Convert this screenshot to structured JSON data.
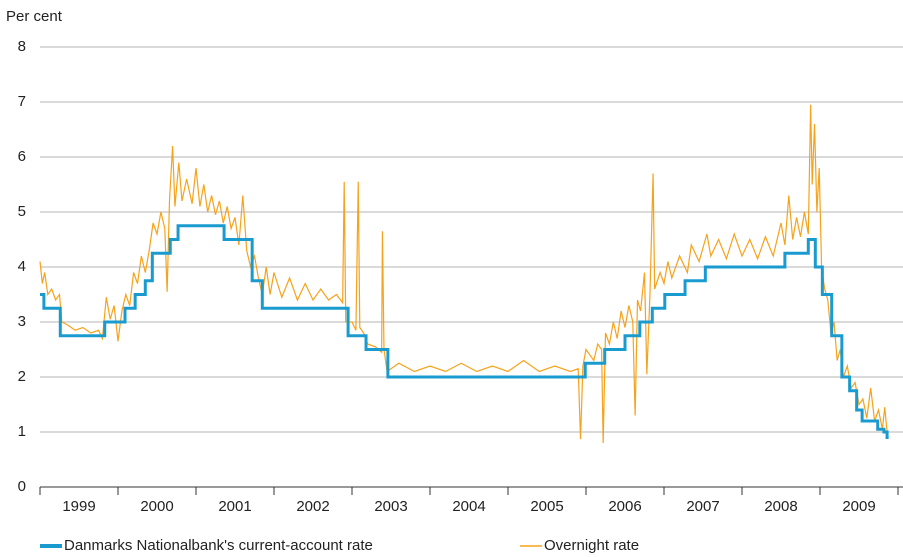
{
  "chart_data": {
    "type": "line",
    "y_label": "Per cent",
    "xlim": [
      1999,
      2010
    ],
    "xticks": [
      {
        "value": 1999.5,
        "label": "1999"
      },
      {
        "value": 2000.5,
        "label": "2000"
      },
      {
        "value": 2001.5,
        "label": "2001"
      },
      {
        "value": 2002.5,
        "label": "2002"
      },
      {
        "value": 2003.5,
        "label": "2003"
      },
      {
        "value": 2004.5,
        "label": "2004"
      },
      {
        "value": 2005.5,
        "label": "2005"
      },
      {
        "value": 2006.5,
        "label": "2006"
      },
      {
        "value": 2007.5,
        "label": "2007"
      },
      {
        "value": 2008.5,
        "label": "2008"
      },
      {
        "value": 2009.5,
        "label": "2009"
      }
    ],
    "ylim": [
      0,
      8
    ],
    "yticks": [
      0,
      1,
      2,
      3,
      4,
      5,
      6,
      7,
      8
    ],
    "grid": true,
    "legend": "bottom",
    "series": [
      {
        "name": "Danmarks Nationalbank's current-account rate",
        "color": "#1a9bd0",
        "step": true,
        "x": [
          1999.0,
          1999.05,
          1999.26,
          1999.83,
          2000.09,
          2000.22,
          2000.35,
          2000.44,
          2000.67,
          2000.77,
          2001.36,
          2001.72,
          2001.85,
          2002.95,
          2003.18,
          2003.46,
          2005.99,
          2006.24,
          2006.5,
          2006.69,
          2006.85,
          2007.01,
          2007.27,
          2007.53,
          2008.55,
          2008.85,
          2008.94,
          2009.03,
          2009.15,
          2009.28,
          2009.38,
          2009.47,
          2009.54,
          2009.74,
          2009.82,
          2009.86,
          2009.88
        ],
        "values": [
          3.5,
          3.25,
          2.75,
          3.0,
          3.25,
          3.5,
          3.75,
          4.25,
          4.5,
          4.75,
          4.5,
          3.75,
          3.25,
          2.75,
          2.5,
          2.0,
          2.25,
          2.5,
          2.75,
          3.0,
          3.25,
          3.5,
          3.75,
          4.0,
          4.25,
          4.5,
          4.0,
          3.5,
          2.75,
          2.0,
          1.75,
          1.4,
          1.2,
          1.05,
          1.0,
          0.9,
          0.9
        ]
      },
      {
        "name": "Overnight rate",
        "color": "#f7a21b",
        "x": [
          1999.0,
          1999.03,
          1999.06,
          1999.1,
          1999.15,
          1999.2,
          1999.25,
          1999.28,
          1999.35,
          1999.45,
          1999.55,
          1999.65,
          1999.75,
          1999.8,
          1999.85,
          1999.9,
          1999.95,
          2000.0,
          2000.05,
          2000.1,
          2000.15,
          2000.2,
          2000.25,
          2000.3,
          2000.35,
          2000.4,
          2000.45,
          2000.5,
          2000.55,
          2000.6,
          2000.63,
          2000.66,
          2000.7,
          2000.73,
          2000.78,
          2000.82,
          2000.88,
          2000.95,
          2001.0,
          2001.05,
          2001.1,
          2001.15,
          2001.2,
          2001.25,
          2001.3,
          2001.35,
          2001.4,
          2001.45,
          2001.5,
          2001.55,
          2001.6,
          2001.65,
          2001.7,
          2001.75,
          2001.8,
          2001.85,
          2001.9,
          2001.95,
          2002.0,
          2002.1,
          2002.2,
          2002.3,
          2002.4,
          2002.5,
          2002.6,
          2002.7,
          2002.8,
          2002.88,
          2002.9,
          2002.92,
          2003.0,
          2003.05,
          2003.08,
          2003.1,
          2003.15,
          2003.2,
          2003.3,
          2003.38,
          2003.39,
          2003.41,
          2003.45,
          2003.6,
          2003.8,
          2004.0,
          2004.2,
          2004.4,
          2004.6,
          2004.8,
          2005.0,
          2005.2,
          2005.4,
          2005.6,
          2005.8,
          2005.9,
          2005.93,
          2005.96,
          2006.0,
          2006.1,
          2006.15,
          2006.2,
          2006.22,
          2006.25,
          2006.3,
          2006.35,
          2006.4,
          2006.45,
          2006.5,
          2006.55,
          2006.6,
          2006.63,
          2006.66,
          2006.7,
          2006.75,
          2006.78,
          2006.82,
          2006.86,
          2006.88,
          2006.95,
          2007.0,
          2007.05,
          2007.1,
          2007.2,
          2007.3,
          2007.35,
          2007.45,
          2007.55,
          2007.6,
          2007.7,
          2007.8,
          2007.9,
          2008.0,
          2008.1,
          2008.2,
          2008.3,
          2008.4,
          2008.5,
          2008.55,
          2008.6,
          2008.65,
          2008.7,
          2008.75,
          2008.8,
          2008.85,
          2008.88,
          2008.9,
          2008.93,
          2008.96,
          2008.99,
          2009.02,
          2009.06,
          2009.1,
          2009.14,
          2009.18,
          2009.22,
          2009.26,
          2009.3,
          2009.35,
          2009.4,
          2009.45,
          2009.5,
          2009.55,
          2009.6,
          2009.65,
          2009.7,
          2009.75,
          2009.8,
          2009.83,
          2009.86
        ],
        "values": [
          4.1,
          3.7,
          3.9,
          3.5,
          3.6,
          3.4,
          3.5,
          3.0,
          2.95,
          2.85,
          2.9,
          2.8,
          2.85,
          2.7,
          3.45,
          3.05,
          3.3,
          2.65,
          3.2,
          3.5,
          3.3,
          3.9,
          3.7,
          4.2,
          3.9,
          4.3,
          4.8,
          4.6,
          5.0,
          4.7,
          3.55,
          5.2,
          6.2,
          5.1,
          5.9,
          5.2,
          5.6,
          5.15,
          5.8,
          5.1,
          5.5,
          5.0,
          5.3,
          4.95,
          5.2,
          4.8,
          5.1,
          4.7,
          4.9,
          4.4,
          5.3,
          4.3,
          4.0,
          4.2,
          3.8,
          3.5,
          4.0,
          3.5,
          3.9,
          3.45,
          3.8,
          3.4,
          3.7,
          3.4,
          3.6,
          3.4,
          3.5,
          3.35,
          5.55,
          3.0,
          3.0,
          2.85,
          5.55,
          2.9,
          2.8,
          2.6,
          2.55,
          2.45,
          4.65,
          2.5,
          2.1,
          2.25,
          2.1,
          2.2,
          2.1,
          2.25,
          2.1,
          2.2,
          2.1,
          2.3,
          2.1,
          2.2,
          2.1,
          2.15,
          0.87,
          2.2,
          2.5,
          2.3,
          2.6,
          2.5,
          0.8,
          2.8,
          2.6,
          3.0,
          2.7,
          3.2,
          2.9,
          3.3,
          3.0,
          1.3,
          3.4,
          3.2,
          3.9,
          2.05,
          3.5,
          5.7,
          3.6,
          3.9,
          3.7,
          4.1,
          3.8,
          4.2,
          3.9,
          4.4,
          4.1,
          4.6,
          4.2,
          4.5,
          4.15,
          4.6,
          4.2,
          4.5,
          4.15,
          4.55,
          4.2,
          4.8,
          4.4,
          5.3,
          4.5,
          4.9,
          4.55,
          5.0,
          4.6,
          6.95,
          5.5,
          6.6,
          5.0,
          5.8,
          4.0,
          3.6,
          3.4,
          2.8,
          3.0,
          2.3,
          2.5,
          2.0,
          2.2,
          1.8,
          1.9,
          1.5,
          1.6,
          1.25,
          1.8,
          1.2,
          1.4,
          1.05,
          1.45,
          1.0
        ]
      }
    ]
  }
}
